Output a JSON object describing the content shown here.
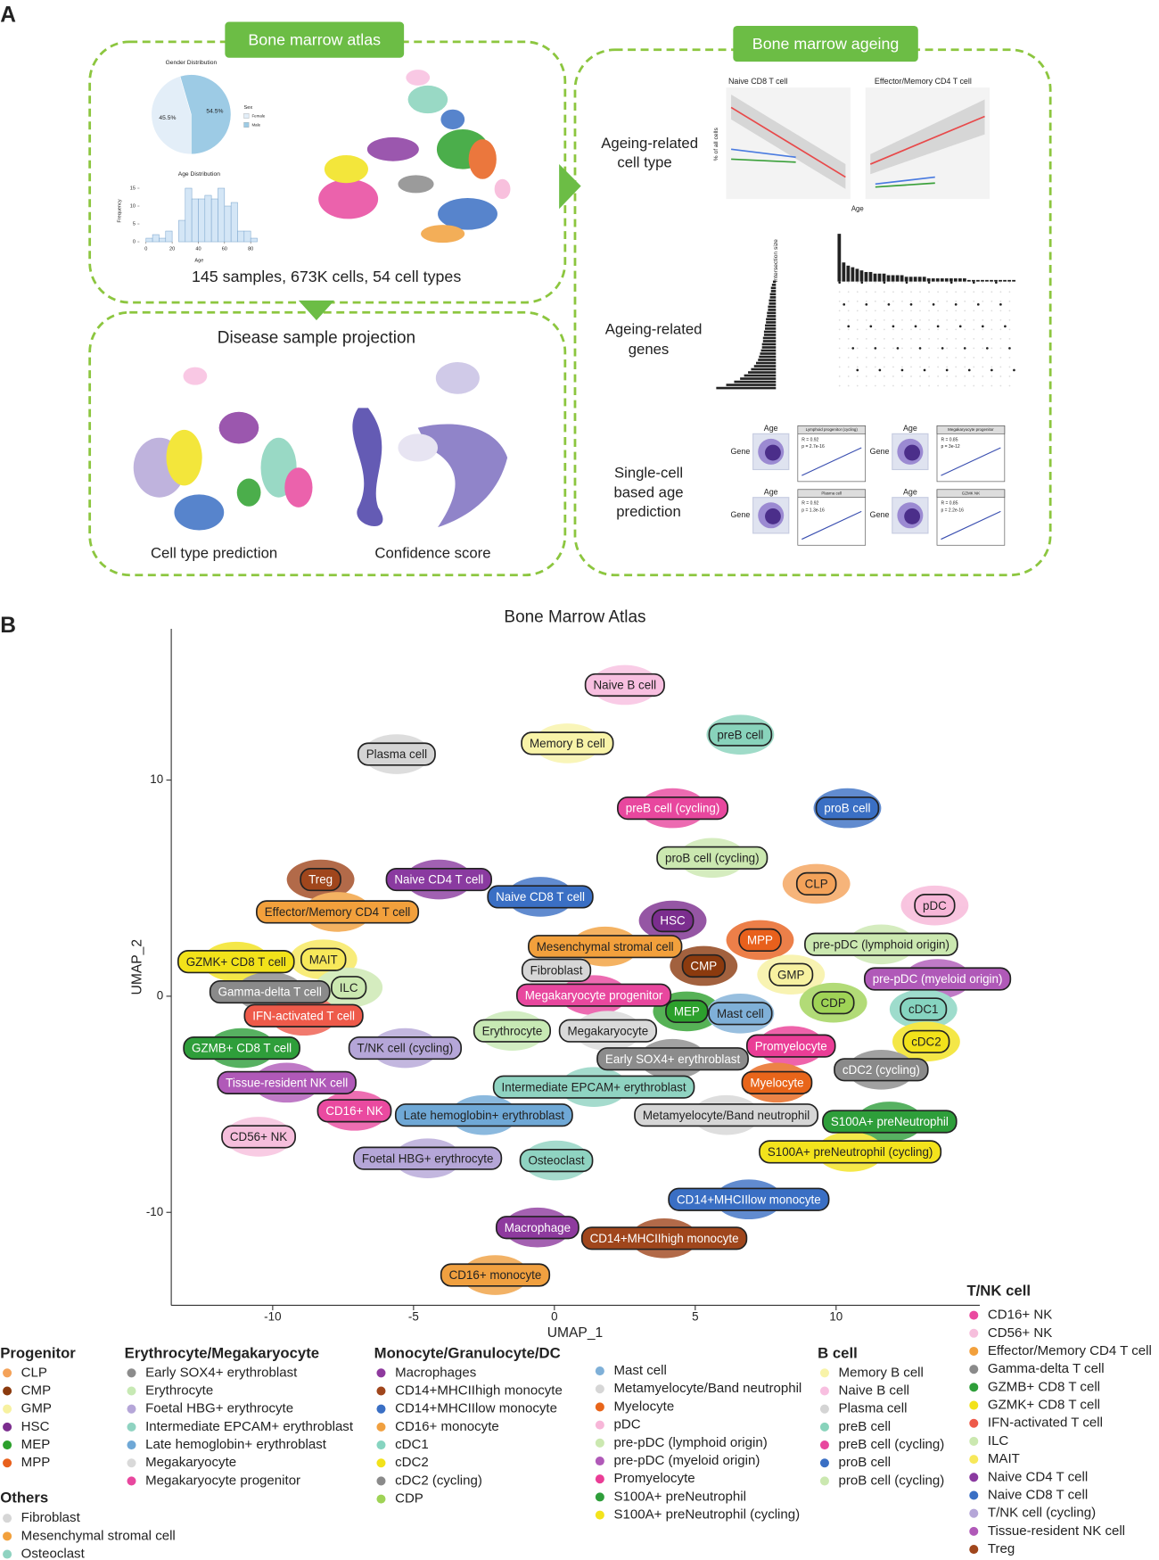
{
  "panel_a": {
    "label": "A",
    "atlas": {
      "title": "Bone marrow atlas",
      "stats": "145 samples, 673K cells, 54 cell types"
    },
    "pie": {
      "title": "Gender Distribution",
      "legend_title": "Sex",
      "names": [
        "Female",
        "Male"
      ],
      "values": [
        45.5,
        54.5
      ],
      "value_labels": [
        "45.5%",
        "54.5%"
      ],
      "colors": [
        "#e3eef8",
        "#9dcbe5"
      ]
    },
    "histogram": {
      "title": "Age Distribution",
      "xlabel": "Age",
      "ylabel": "Frequency",
      "bins": [
        0,
        5,
        10,
        15,
        20,
        25,
        30,
        35,
        40,
        45,
        50,
        55,
        60,
        65,
        70,
        75,
        80,
        85
      ],
      "counts": [
        1,
        2,
        1,
        3,
        0,
        6,
        15,
        12,
        12,
        13,
        12,
        15,
        10,
        11,
        3,
        3,
        1
      ],
      "xlim": [
        -5,
        90
      ],
      "ylim": [
        0,
        17
      ],
      "xticks": [
        0,
        20,
        40,
        60,
        80
      ],
      "yticks": [
        0,
        5,
        10,
        15
      ],
      "color": "#d4e6f6"
    },
    "projection": {
      "title": "Disease sample projection",
      "left": "Cell type prediction",
      "right": "Confidence score"
    },
    "ageing": {
      "title": "Bone marrow ageing",
      "cell_type": {
        "title": [
          "Ageing-related",
          "cell type"
        ],
        "plots": [
          "Naive CD8 T cell",
          "Effector/Memory CD4 T cell"
        ],
        "ylabel": "% of all cells",
        "xlabel": "Age"
      },
      "genes": {
        "title": [
          "Ageing-related",
          "genes"
        ],
        "ylabel": "Intersection size",
        "top_bars": [
          30,
          12,
          10,
          9,
          8,
          7,
          6,
          6,
          5,
          5,
          5,
          4,
          4,
          4,
          4,
          3,
          3,
          3,
          3,
          3,
          2,
          2,
          2,
          2,
          2,
          2,
          2,
          2,
          2,
          1,
          1,
          1,
          1,
          1,
          1,
          1,
          1,
          1,
          1,
          1
        ],
        "side_bars": [
          3,
          4,
          5,
          5,
          6,
          6,
          7,
          7,
          8,
          8,
          9,
          9,
          10,
          10,
          11,
          11,
          12,
          12,
          13,
          13,
          14,
          14,
          15,
          16,
          17,
          18,
          20,
          22,
          25,
          28,
          32,
          36,
          42,
          50,
          60
        ]
      },
      "prediction": {
        "title": [
          "Single-cell",
          "based age",
          "prediction"
        ],
        "age": "Age",
        "gene": "Gene",
        "cards": [
          {
            "title": "Lymphoid progenitor (cycling)",
            "r": "R = 0.92",
            "p": "p = 2.7e-16"
          },
          {
            "title": "Megakaryocyte progenitor",
            "r": "R = 0.85",
            "p": "p = 3e-12"
          },
          {
            "title": "Plasma cell",
            "r": "R = 0.92",
            "p": "p = 1.3e-16"
          },
          {
            "title": "GZMK NK",
            "r": "R = 0.85",
            "p": "p = 2.2e-16"
          }
        ]
      }
    }
  },
  "chart_data": {
    "type": "scatter",
    "panel": "B",
    "title": "Bone Marrow Atlas",
    "xlabel": "UMAP_1",
    "ylabel": "UMAP_2",
    "xlim": [
      -13.6,
      15.1
    ],
    "ylim": [
      -14.3,
      17
    ],
    "xticks": [
      -10,
      -5,
      0,
      5,
      10
    ],
    "yticks": [
      -10,
      0,
      10
    ],
    "labels": [
      {
        "label": "Naive B cell",
        "x": 2.5,
        "y": 14.4,
        "color": "#f8bfe0"
      },
      {
        "label": "Memory B cell",
        "x": 0.46,
        "y": 11.7,
        "color": "#f8f3a8"
      },
      {
        "label": "preB cell",
        "x": 6.6,
        "y": 12.1,
        "color": "#88d3bb"
      },
      {
        "label": "Plasma cell",
        "x": -5.6,
        "y": 11.2,
        "color": "#d4d4d4"
      },
      {
        "label": "preB cell (cycling)",
        "x": 4.2,
        "y": 8.7,
        "color": "#e8479e"
      },
      {
        "label": "proB cell",
        "x": 10.4,
        "y": 8.7,
        "color": "#3a6fc4"
      },
      {
        "label": "proB cell (cycling)",
        "x": 5.6,
        "y": 6.4,
        "color": "#cbe8b0"
      },
      {
        "label": "CLP",
        "x": 9.3,
        "y": 5.2,
        "color": "#f4a259"
      },
      {
        "label": "pDC",
        "x": 13.5,
        "y": 4.2,
        "color": "#f7b6d8"
      },
      {
        "label": "Treg",
        "x": -8.3,
        "y": 5.4,
        "color": "#a0461c"
      },
      {
        "label": "Naive CD4 T cell",
        "x": -4.1,
        "y": 5.4,
        "color": "#8a3aa0"
      },
      {
        "label": "Naive CD8 T cell",
        "x": -0.5,
        "y": 4.6,
        "color": "#3a6fc4"
      },
      {
        "label": "Effector/Memory CD4 T cell",
        "x": -7.7,
        "y": 3.9,
        "color": "#f2a03c"
      },
      {
        "label": "HSC",
        "x": 4.2,
        "y": 3.5,
        "color": "#7b2d8e"
      },
      {
        "label": "MPP",
        "x": 7.3,
        "y": 2.6,
        "color": "#e8601c"
      },
      {
        "label": "pre-pDC (lymphoid origin)",
        "x": 11.6,
        "y": 2.4,
        "color": "#cbe8b0"
      },
      {
        "label": "Mesenchymal stromal cell",
        "x": 1.8,
        "y": 2.3,
        "color": "#f2a03c"
      },
      {
        "label": "GZMK+ CD8 T cell",
        "x": -11.3,
        "y": 1.6,
        "color": "#f2e21a"
      },
      {
        "label": "MAIT",
        "x": -8.2,
        "y": 1.7,
        "color": "#f7e85a"
      },
      {
        "label": "Fibroblast",
        "x": 0.07,
        "y": 1.2,
        "color": "#d6d6d6"
      },
      {
        "label": "CMP",
        "x": 5.3,
        "y": 1.4,
        "color": "#8b3a0e"
      },
      {
        "label": "GMP",
        "x": 8.4,
        "y": 1.0,
        "color": "#f7f1a0"
      },
      {
        "label": "pre-pDC (myeloid origin)",
        "x": 13.6,
        "y": 0.8,
        "color": "#b059b8"
      },
      {
        "label": "Gamma-delta T cell",
        "x": -10.1,
        "y": 0.2,
        "color": "#8a8a8a"
      },
      {
        "label": "ILC",
        "x": -7.3,
        "y": 0.4,
        "color": "#cbe8b0"
      },
      {
        "label": "Megakaryocyte progenitor",
        "x": 1.4,
        "y": 0.05,
        "color": "#e8479e"
      },
      {
        "label": "CDP",
        "x": 9.9,
        "y": -0.3,
        "color": "#9fd356"
      },
      {
        "label": "cDC1",
        "x": 13.1,
        "y": -0.6,
        "color": "#86d4c0"
      },
      {
        "label": "MEP",
        "x": 4.7,
        "y": -0.7,
        "color": "#2ca02c"
      },
      {
        "label": "Mast cell",
        "x": 6.6,
        "y": -0.8,
        "color": "#7fb0d8"
      },
      {
        "label": "IFN-activated T cell",
        "x": -8.9,
        "y": -0.9,
        "color": "#ee5a4a"
      },
      {
        "label": "Erythrocyte",
        "x": -1.5,
        "y": -1.6,
        "color": "#c7e9b4"
      },
      {
        "label": "Megakaryocyte",
        "x": 1.9,
        "y": -1.6,
        "color": "#d9d9d9"
      },
      {
        "label": "cDC2",
        "x": 13.2,
        "y": -2.1,
        "color": "#f2e21a"
      },
      {
        "label": "GZMB+ CD8 T cell",
        "x": -11.1,
        "y": -2.4,
        "color": "#2e9e3a"
      },
      {
        "label": "T/NK cell (cycling)",
        "x": -5.3,
        "y": -2.4,
        "color": "#b5a6d8"
      },
      {
        "label": "Promyelocyte",
        "x": 8.4,
        "y": -2.3,
        "color": "#ea3d96"
      },
      {
        "label": "Early SOX4+ erythroblast",
        "x": 4.2,
        "y": -2.9,
        "color": "#8c8c8c"
      },
      {
        "label": "cDC2 (cycling)",
        "x": 11.6,
        "y": -3.4,
        "color": "#8a8a8a"
      },
      {
        "label": "Tissue-resident NK cell",
        "x": -9.5,
        "y": -4.0,
        "color": "#b059b8"
      },
      {
        "label": "Intermediate EPCAM+ erythroblast",
        "x": 1.4,
        "y": -4.2,
        "color": "#8fd3c1"
      },
      {
        "label": "Myelocyte",
        "x": 7.9,
        "y": -4.0,
        "color": "#e8651a"
      },
      {
        "label": "CD16+ NK",
        "x": -7.1,
        "y": -5.3,
        "color": "#ea4aa0"
      },
      {
        "label": "Late hemoglobin+ erythroblast",
        "x": -2.5,
        "y": -5.5,
        "color": "#6fa8d6"
      },
      {
        "label": "Metamyelocyte/Band neutrophil",
        "x": 6.1,
        "y": -5.5,
        "color": "#d6d6d6"
      },
      {
        "label": "S100A+ preNeutrophil",
        "x": 11.9,
        "y": -5.8,
        "color": "#2e9e3a"
      },
      {
        "label": "CD56+ NK",
        "x": -10.5,
        "y": -6.5,
        "color": "#f6bedc"
      },
      {
        "label": "S100A+ preNeutrophil (cycling)",
        "x": 10.5,
        "y": -7.2,
        "color": "#f3e31c"
      },
      {
        "label": "Foetal HBG+ erythrocyte",
        "x": -4.5,
        "y": -7.5,
        "color": "#b5a6d8"
      },
      {
        "label": "Osteoclast",
        "x": 0.07,
        "y": -7.6,
        "color": "#8fd3c1"
      },
      {
        "label": "CD14+MHCIIlow monocyte",
        "x": 6.9,
        "y": -9.4,
        "color": "#3a6fc4"
      },
      {
        "label": "Macrophage",
        "x": -0.6,
        "y": -10.7,
        "color": "#8e3a9e"
      },
      {
        "label": "CD14+MHCIIhigh monocyte",
        "x": 3.9,
        "y": -11.2,
        "color": "#a0461c"
      },
      {
        "label": "CD16+ monocyte",
        "x": -2.1,
        "y": -12.9,
        "color": "#f0a040"
      }
    ],
    "legend": [
      {
        "title": "Progenitor",
        "items": [
          {
            "name": "CLP",
            "color": "#f4a259"
          },
          {
            "name": "CMP",
            "color": "#8b3a0e"
          },
          {
            "name": "GMP",
            "color": "#f7f1a0"
          },
          {
            "name": "HSC",
            "color": "#7b2d8e"
          },
          {
            "name": "MEP",
            "color": "#2ca02c"
          },
          {
            "name": "MPP",
            "color": "#e8601c"
          }
        ]
      },
      {
        "title": "Erythrocyte/Megakaryocyte",
        "items": [
          {
            "name": "Early SOX4+ erythroblast",
            "color": "#8c8c8c"
          },
          {
            "name": "Erythrocyte",
            "color": "#c7e9b4"
          },
          {
            "name": "Foetal HBG+ erythrocyte",
            "color": "#b5a6d8"
          },
          {
            "name": "Intermediate EPCAM+ erythroblast",
            "color": "#8fd3c1"
          },
          {
            "name": "Late hemoglobin+ erythroblast",
            "color": "#6fa8d6"
          },
          {
            "name": "Megakaryocyte",
            "color": "#d9d9d9"
          },
          {
            "name": "Megakaryocyte progenitor",
            "color": "#e8479e"
          }
        ]
      },
      {
        "title": "Monocyte/Granulocyte/DC",
        "items": [
          {
            "name": "Macrophages",
            "color": "#8e3a9e"
          },
          {
            "name": "CD14+MHCIIhigh monocyte",
            "color": "#a0461c"
          },
          {
            "name": "CD14+MHCIIlow monocyte",
            "color": "#3a6fc4"
          },
          {
            "name": "CD16+ monocyte",
            "color": "#f0a040"
          },
          {
            "name": "cDC1",
            "color": "#86d4c0"
          },
          {
            "name": "cDC2",
            "color": "#f2e21a"
          },
          {
            "name": "cDC2 (cycling)",
            "color": "#8a8a8a"
          },
          {
            "name": "CDP",
            "color": "#9fd356"
          },
          {
            "name": "Mast cell",
            "color": "#7fb0d8"
          },
          {
            "name": "Metamyelocyte/Band neutrophil",
            "color": "#d6d6d6"
          },
          {
            "name": "Myelocyte",
            "color": "#e8651a"
          },
          {
            "name": "pDC",
            "color": "#f7b6d8"
          },
          {
            "name": "pre-pDC (lymphoid origin)",
            "color": "#cbe8b0"
          },
          {
            "name": "pre-pDC (myeloid origin)",
            "color": "#b059b8"
          },
          {
            "name": "Promyelocyte",
            "color": "#ea3d96"
          },
          {
            "name": "S100A+ preNeutrophil",
            "color": "#2e9e3a"
          },
          {
            "name": "S100A+ preNeutrophil (cycling)",
            "color": "#f3e31c"
          }
        ]
      },
      {
        "title": "B cell",
        "items": [
          {
            "name": "Memory B cell",
            "color": "#f8f3a8"
          },
          {
            "name": "Naive B cell",
            "color": "#f8bfe0"
          },
          {
            "name": "Plasma cell",
            "color": "#d4d4d4"
          },
          {
            "name": "preB cell",
            "color": "#88d3bb"
          },
          {
            "name": "preB cell (cycling)",
            "color": "#e8479e"
          },
          {
            "name": "proB cell",
            "color": "#3a6fc4"
          },
          {
            "name": "proB cell (cycling)",
            "color": "#cbe8b0"
          }
        ]
      },
      {
        "title": "T/NK cell",
        "items": [
          {
            "name": "CD16+ NK",
            "color": "#ea4aa0"
          },
          {
            "name": "CD56+ NK",
            "color": "#f6bedc"
          },
          {
            "name": "Effector/Memory CD4 T cell",
            "color": "#f2a03c"
          },
          {
            "name": "Gamma-delta T cell",
            "color": "#8a8a8a"
          },
          {
            "name": "GZMB+ CD8 T cell",
            "color": "#2e9e3a"
          },
          {
            "name": "GZMK+ CD8 T cell",
            "color": "#f2e21a"
          },
          {
            "name": "IFN-activated T cell",
            "color": "#ee5a4a"
          },
          {
            "name": "ILC",
            "color": "#cbe8b0"
          },
          {
            "name": "MAIT",
            "color": "#f7e85a"
          },
          {
            "name": "Naive CD4 T cell",
            "color": "#8a3aa0"
          },
          {
            "name": "Naive CD8 T cell",
            "color": "#3a6fc4"
          },
          {
            "name": "T/NK cell (cycling)",
            "color": "#b5a6d8"
          },
          {
            "name": "Tissue-resident NK cell",
            "color": "#b059b8"
          },
          {
            "name": "Treg",
            "color": "#a0461c"
          }
        ]
      },
      {
        "title": "Others",
        "items": [
          {
            "name": "Fibroblast",
            "color": "#d6d6d6"
          },
          {
            "name": "Mesenchymal stromal cell",
            "color": "#f2a03c"
          },
          {
            "name": "Osteoclast",
            "color": "#8fd3c1"
          }
        ]
      }
    ]
  }
}
